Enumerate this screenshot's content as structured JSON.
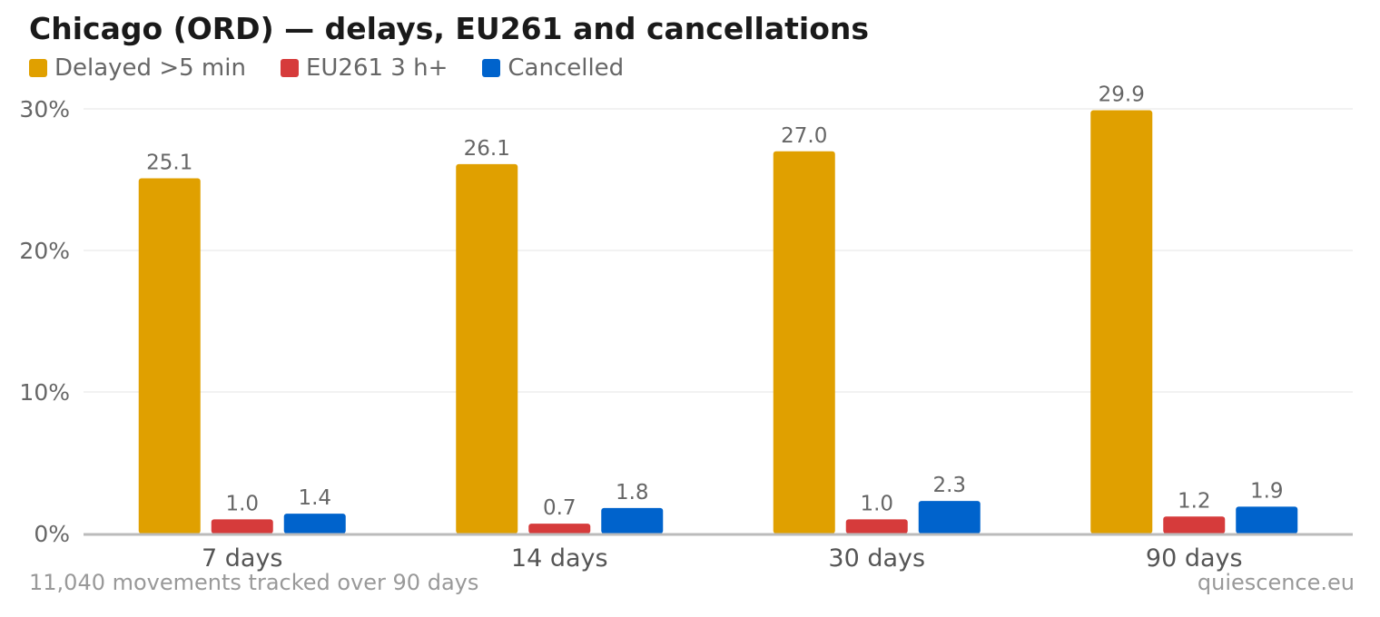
{
  "chart_data": {
    "type": "bar",
    "title": "Chicago (ORD) — delays, EU261 and cancellations",
    "categories": [
      "7 days",
      "14 days",
      "30 days",
      "90 days"
    ],
    "series": [
      {
        "name": "Delayed >5 min",
        "color": "#e0a000",
        "values": [
          25.1,
          26.1,
          27.0,
          29.9
        ],
        "labels": [
          "25.1",
          "26.1",
          "27.0",
          "29.9"
        ]
      },
      {
        "name": "EU261 3 h+",
        "color": "#d63b3b",
        "values": [
          1.0,
          0.7,
          1.0,
          1.2
        ],
        "labels": [
          "1.0",
          "0.7",
          "1.0",
          "1.2"
        ]
      },
      {
        "name": "Cancelled",
        "color": "#0063cc",
        "values": [
          1.4,
          1.8,
          2.3,
          1.9
        ],
        "labels": [
          "1.4",
          "1.8",
          "2.3",
          "1.9"
        ]
      }
    ],
    "yticks": [
      {
        "value": 0,
        "label": "0%"
      },
      {
        "value": 10,
        "label": "10%"
      },
      {
        "value": 20,
        "label": "20%"
      },
      {
        "value": 30,
        "label": "30%"
      }
    ],
    "ylim": [
      0,
      30
    ],
    "xlabel": "",
    "ylabel": "",
    "grid": true,
    "legend_position": "top-left"
  },
  "footnote": "11,040 movements tracked over 90 days",
  "source": "quiescence.eu"
}
